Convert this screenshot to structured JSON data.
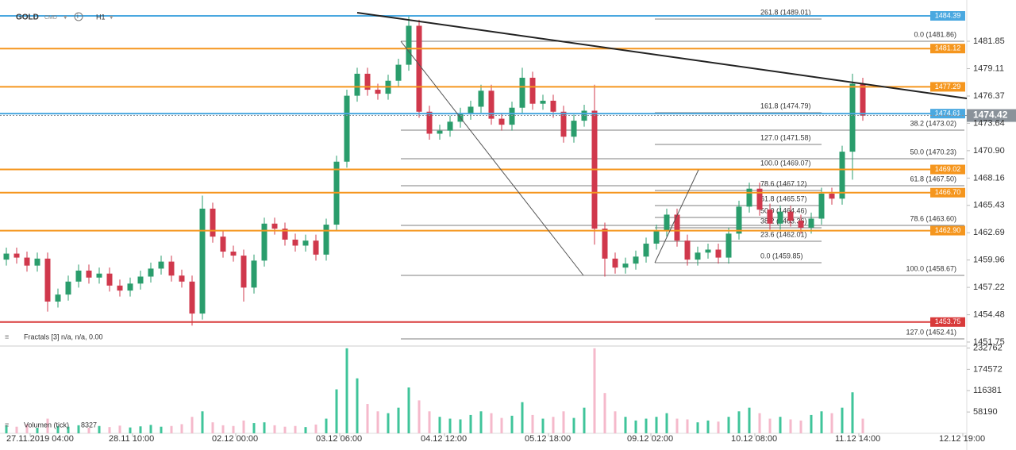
{
  "chart_data": {
    "type": "candlestick",
    "symbol": "GOLD",
    "market": "CMD",
    "timeframe": "H1",
    "up_color": "#2a9d6c",
    "down_color": "#d0384c",
    "vol_up_color": "#3fc49a",
    "vol_down_color": "#f5b9cb",
    "open": [
      1460.0,
      1460.6,
      1460.2,
      1459.4,
      1460.1,
      1455.8,
      1456.5,
      1457.8,
      1458.9,
      1458.2,
      1458.6,
      1457.4,
      1456.9,
      1457.6,
      1458.3,
      1459.1,
      1459.8,
      1458.4,
      1457.8,
      1454.6,
      1465.1,
      1462.3,
      1460.8,
      1460.4,
      1457.2,
      1459.9,
      1463.6,
      1463.1,
      1462.0,
      1461.4,
      1461.9,
      1460.5,
      1463.5,
      1469.8,
      1476.4,
      1478.6,
      1477.0,
      1476.6,
      1477.9,
      1479.5,
      1483.4,
      1474.8,
      1472.6,
      1472.9,
      1473.8,
      1474.6,
      1475.3,
      1476.9,
      1474.1,
      1473.5,
      1475.2,
      1478.2,
      1475.6,
      1475.9,
      1474.8,
      1472.3,
      1473.9,
      1474.9,
      1463.1,
      1460.1,
      1459.2,
      1459.6,
      1460.3,
      1461.6,
      1462.9,
      1464.5,
      1461.9,
      1460.0,
      1460.7,
      1461.0,
      1460.2,
      1462.6,
      1465.3,
      1467.1,
      1465.0,
      1463.6,
      1464.8,
      1463.9,
      1463.2,
      1464.1,
      1466.6,
      1466.1,
      1470.8,
      1477.6
    ],
    "high": [
      1461.2,
      1461.2,
      1460.8,
      1460.7,
      1460.7,
      1457.1,
      1458.4,
      1459.5,
      1459.5,
      1459.2,
      1459.2,
      1458.0,
      1458.2,
      1458.9,
      1459.7,
      1460.4,
      1460.4,
      1459.0,
      1458.4,
      1466.4,
      1465.7,
      1462.9,
      1461.4,
      1461.0,
      1460.5,
      1464.2,
      1464.2,
      1463.7,
      1462.6,
      1462.5,
      1462.5,
      1464.1,
      1470.4,
      1477.0,
      1479.2,
      1479.2,
      1477.6,
      1478.5,
      1480.1,
      1484.4,
      1484.0,
      1475.4,
      1473.5,
      1474.4,
      1475.2,
      1475.9,
      1477.5,
      1477.5,
      1474.7,
      1475.8,
      1479.2,
      1478.8,
      1476.5,
      1476.5,
      1475.4,
      1474.5,
      1475.5,
      1477.5,
      1463.7,
      1460.7,
      1460.2,
      1460.9,
      1462.2,
      1463.5,
      1465.1,
      1465.1,
      1462.5,
      1461.3,
      1461.6,
      1461.6,
      1463.2,
      1465.9,
      1467.7,
      1467.7,
      1465.6,
      1465.4,
      1465.4,
      1464.5,
      1464.7,
      1467.2,
      1467.2,
      1471.4,
      1478.6,
      1478.2
    ],
    "low": [
      1459.4,
      1459.6,
      1458.8,
      1458.8,
      1454.8,
      1455.2,
      1455.9,
      1457.2,
      1457.6,
      1457.6,
      1456.8,
      1456.3,
      1456.3,
      1457.0,
      1457.7,
      1458.5,
      1457.8,
      1457.2,
      1453.4,
      1454.0,
      1461.7,
      1460.2,
      1459.8,
      1455.8,
      1456.6,
      1459.3,
      1462.5,
      1461.4,
      1460.8,
      1460.8,
      1459.9,
      1459.9,
      1462.9,
      1469.2,
      1475.8,
      1476.4,
      1476.0,
      1476.0,
      1477.3,
      1478.9,
      1474.2,
      1472.0,
      1472.0,
      1472.3,
      1473.2,
      1474.0,
      1474.7,
      1473.5,
      1472.9,
      1472.9,
      1474.6,
      1475.0,
      1475.0,
      1474.2,
      1471.7,
      1471.7,
      1473.3,
      1461.5,
      1458.3,
      1458.6,
      1458.6,
      1459.0,
      1459.7,
      1461.0,
      1462.3,
      1461.3,
      1459.4,
      1459.4,
      1460.1,
      1459.6,
      1459.6,
      1462.0,
      1464.7,
      1464.4,
      1463.0,
      1463.0,
      1463.3,
      1462.6,
      1462.6,
      1463.5,
      1465.5,
      1465.5,
      1468.0,
      1473.9
    ],
    "close": [
      1460.6,
      1460.2,
      1459.4,
      1460.1,
      1455.8,
      1456.5,
      1457.8,
      1458.9,
      1458.2,
      1458.6,
      1457.4,
      1456.9,
      1457.6,
      1458.3,
      1459.1,
      1459.8,
      1458.4,
      1457.8,
      1454.6,
      1465.1,
      1462.3,
      1460.8,
      1460.4,
      1457.2,
      1459.9,
      1463.6,
      1463.1,
      1462.0,
      1461.4,
      1461.9,
      1460.5,
      1463.5,
      1469.8,
      1476.4,
      1478.6,
      1477.0,
      1476.6,
      1477.9,
      1479.5,
      1483.4,
      1474.8,
      1472.6,
      1472.9,
      1473.8,
      1474.6,
      1475.3,
      1476.9,
      1474.1,
      1473.5,
      1475.2,
      1478.2,
      1475.6,
      1475.9,
      1474.8,
      1472.3,
      1473.9,
      1474.9,
      1463.1,
      1460.1,
      1459.2,
      1459.6,
      1460.3,
      1461.6,
      1462.9,
      1464.5,
      1461.9,
      1460.0,
      1460.7,
      1461.0,
      1460.2,
      1462.6,
      1465.3,
      1467.1,
      1465.0,
      1463.6,
      1464.8,
      1463.9,
      1463.2,
      1464.1,
      1466.6,
      1466.1,
      1470.8,
      1477.6,
      1474.4
    ],
    "volume": [
      22000,
      18000,
      25000,
      15000,
      40000,
      20000,
      18000,
      22000,
      15000,
      20000,
      17000,
      21000,
      16000,
      19000,
      23000,
      18000,
      20000,
      25000,
      45000,
      60000,
      30000,
      22000,
      20000,
      35000,
      28000,
      30000,
      22000,
      18000,
      20000,
      17000,
      24000,
      40000,
      120000,
      232000,
      150000,
      80000,
      60000,
      55000,
      70000,
      125000,
      90000,
      60000,
      45000,
      40000,
      38000,
      50000,
      60000,
      55000,
      42000,
      48000,
      85000,
      50000,
      40000,
      45000,
      60000,
      42000,
      70000,
      232000,
      110000,
      60000,
      45000,
      35000,
      40000,
      45000,
      55000,
      40000,
      38000,
      30000,
      35000,
      32000,
      45000,
      60000,
      70000,
      55000,
      40000,
      45000,
      38000,
      35000,
      50000,
      60000,
      55000,
      70000,
      112000,
      40000
    ],
    "ylim": [
      1451.43,
      1485.98
    ],
    "yticks": [
      1481.85,
      1479.11,
      1476.37,
      1473.64,
      {
        "value": 1470.9,
        "label": "1470.90"
      },
      1468.16,
      1465.43,
      1462.69,
      1459.96,
      1457.22,
      1454.48,
      1451.75
    ],
    "vlim": [
      0,
      236000
    ],
    "vticks": [
      232762,
      174572,
      116381,
      58190
    ],
    "xticks": [
      "27.11.2019 04:00",
      "28.11 10:00",
      "02.12 00:00",
      "03.12 06:00",
      "04.12 12:00",
      "05.12 18:00",
      "09.12 02:00",
      "10.12 08:00",
      "11.12 14:00",
      "12.12 19:00"
    ],
    "price_lines": [
      {
        "value": 1484.39,
        "color": "#4aa8e0"
      },
      {
        "value": 1481.12,
        "color": "#f5961e"
      },
      {
        "value": 1477.29,
        "color": "#f5961e"
      },
      {
        "value": 1474.61,
        "color": "#4aa8e0"
      },
      {
        "value": 1469.02,
        "color": "#f5961e"
      },
      {
        "value": 1466.7,
        "label": "1466.70",
        "color": "#f5961e"
      },
      {
        "value": 1462.9,
        "label": "1462.90",
        "color": "#f5961e"
      },
      {
        "value": 1453.75,
        "color": "#d83a3a"
      }
    ],
    "last_price": {
      "value": 1474.42,
      "color": "#8a929a"
    },
    "fib_left": [
      "0.0 (1481.86)",
      "38.2 (1473.02)",
      "50.0 (1470.23)",
      "61.8 (1467.50)",
      "78.6 (1463.60)",
      "100.0 (1458.67)",
      "127.0 (1452.41)"
    ],
    "fib_right": [
      "261.8 (1489.01)",
      "161.8 (1474.79)",
      "127.0 (1471.58)",
      "100.0 (1469.07)",
      "78.6 (1467.12)",
      "61.8 (1465.57)",
      "50.0 (1464.46)",
      "38.2 (1463.36)",
      "23.6 (1462.01)",
      "0.0 (1459.85)"
    ],
    "fractals_label": "Fractals [3] n/a, n/a, 0.00",
    "volume_label": "Volumen (tick)",
    "volume_last": 8327
  }
}
